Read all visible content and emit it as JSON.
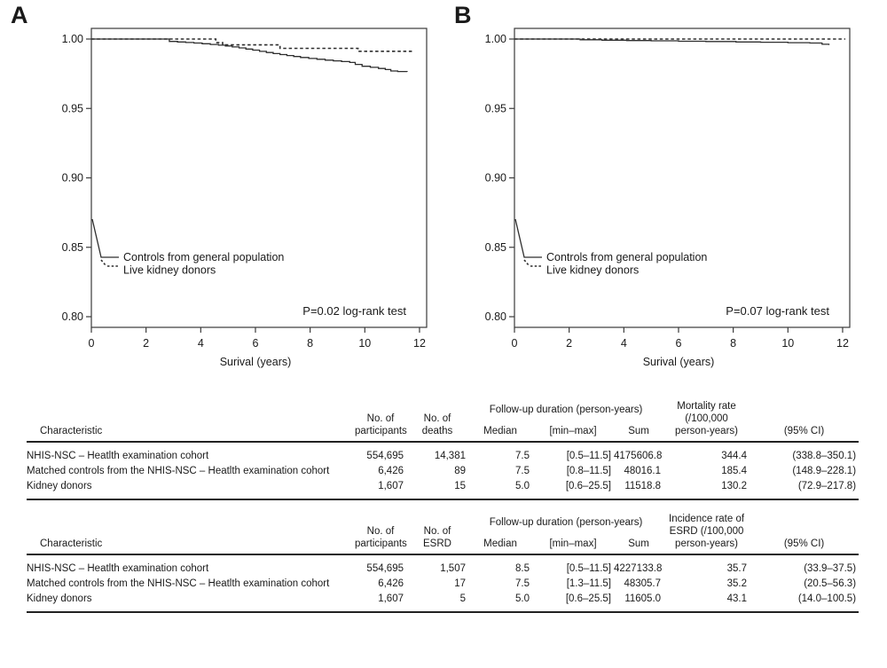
{
  "colors": {
    "line": "#2e2e2e",
    "text": "#1a1a1a",
    "rule": "#222222",
    "frame": "#3a3a3a"
  },
  "chart_data": [
    {
      "type": "line",
      "panel_label": "A",
      "xlabel": "Surival (years)",
      "xlim": [
        0,
        12
      ],
      "ylim": [
        0.8,
        1.0
      ],
      "x_ticks": [
        0,
        2,
        4,
        6,
        8,
        10,
        12
      ],
      "y_tick_labels": [
        "1.00",
        "0.95",
        "0.90",
        "0.85",
        "0.80"
      ],
      "y_tick_values": [
        1.0,
        0.95,
        0.9,
        0.85,
        0.8
      ],
      "grid": false,
      "legend_position": "lower-left",
      "annotation": "P=0.02 log-rank test",
      "series": [
        {
          "name": "Controls from general population",
          "style": "solid",
          "points": [
            [
              0,
              1.0
            ],
            [
              2.85,
              0.9983
            ],
            [
              3.15,
              0.9979
            ],
            [
              3.45,
              0.9975
            ],
            [
              3.75,
              0.9971
            ],
            [
              4.05,
              0.9966
            ],
            [
              4.35,
              0.9961
            ],
            [
              4.65,
              0.9956
            ],
            [
              4.9,
              0.995
            ],
            [
              5.15,
              0.9943
            ],
            [
              5.4,
              0.9936
            ],
            [
              5.65,
              0.9928
            ],
            [
              5.9,
              0.992
            ],
            [
              6.15,
              0.9911
            ],
            [
              6.4,
              0.9903
            ],
            [
              6.65,
              0.9895
            ],
            [
              6.9,
              0.9888
            ],
            [
              7.15,
              0.9881
            ],
            [
              7.4,
              0.9874
            ],
            [
              7.65,
              0.9867
            ],
            [
              7.95,
              0.986
            ],
            [
              8.25,
              0.9854
            ],
            [
              8.55,
              0.9848
            ],
            [
              8.85,
              0.9843
            ],
            [
              9.15,
              0.9838
            ],
            [
              9.45,
              0.9831
            ],
            [
              9.65,
              0.9817
            ],
            [
              9.9,
              0.9804
            ],
            [
              10.2,
              0.9796
            ],
            [
              10.5,
              0.9788
            ],
            [
              10.75,
              0.978
            ],
            [
              10.95,
              0.977
            ],
            [
              11.2,
              0.9766
            ],
            [
              11.55,
              0.9765
            ]
          ]
        },
        {
          "name": "Live kidney donors",
          "style": "dashed",
          "points": [
            [
              0,
              1.0
            ],
            [
              4.55,
              0.9974
            ],
            [
              4.8,
              0.9958
            ],
            [
              6.9,
              0.9933
            ],
            [
              9.75,
              0.9912
            ],
            [
              11.8,
              0.9912
            ]
          ]
        }
      ]
    },
    {
      "type": "line",
      "panel_label": "B",
      "xlabel": "Surival (years)",
      "xlim": [
        0,
        12
      ],
      "ylim": [
        0.8,
        1.0
      ],
      "x_ticks": [
        0,
        2,
        4,
        6,
        8,
        10,
        12
      ],
      "y_tick_labels": [
        "1.00",
        "0.95",
        "0.90",
        "0.85",
        "0.80"
      ],
      "y_tick_values": [
        1.0,
        0.95,
        0.9,
        0.85,
        0.8
      ],
      "grid": false,
      "legend_position": "lower-left",
      "annotation": "P=0.07 log-rank test",
      "series": [
        {
          "name": "Controls from general population",
          "style": "solid",
          "points": [
            [
              0,
              1.0
            ],
            [
              2.4,
              0.9995
            ],
            [
              3.2,
              0.9992
            ],
            [
              4.1,
              0.9989
            ],
            [
              5.0,
              0.9987
            ],
            [
              6.0,
              0.9984
            ],
            [
              7.0,
              0.9982
            ],
            [
              8.1,
              0.9979
            ],
            [
              9.0,
              0.9977
            ],
            [
              10.0,
              0.9974
            ],
            [
              10.8,
              0.9971
            ],
            [
              11.25,
              0.9962
            ],
            [
              11.5,
              0.9957
            ]
          ]
        },
        {
          "name": "Live kidney donors",
          "style": "dashed",
          "points": [
            [
              0,
              1.0
            ],
            [
              12.1,
              1.0
            ]
          ]
        }
      ]
    }
  ],
  "tables": [
    {
      "header": {
        "characteristic": "Characteristic",
        "participants": [
          "No. of",
          "participants"
        ],
        "events": [
          "No. of",
          "deaths"
        ],
        "span_group": "Follow-up duration (person-years)",
        "span_cols": [
          "Median",
          "[min–max]",
          "Sum"
        ],
        "rate": [
          "Mortality rate",
          "(/100,000",
          "person-years)"
        ],
        "ci": "(95% CI)"
      },
      "rows": [
        [
          "NHIS-NSC – Heatlth examination cohort",
          "554,695",
          "14,381",
          "7.5",
          "[0.5–11.5]",
          "4175606.8",
          "344.4",
          "(338.8–350.1)"
        ],
        [
          "Matched controls from the NHIS-NSC – Heatlth examination cohort",
          "6,426",
          "89",
          "7.5",
          "[0.8–11.5]",
          "48016.1",
          "185.4",
          "(148.9–228.1)"
        ],
        [
          "Kidney donors",
          "1,607",
          "15",
          "5.0",
          "[0.6–25.5]",
          "11518.8",
          "130.2",
          "(72.9–217.8)"
        ]
      ]
    },
    {
      "header": {
        "characteristic": "Characteristic",
        "participants": [
          "No. of",
          "participants"
        ],
        "events": [
          "No. of",
          "ESRD"
        ],
        "span_group": "Follow-up duration (person-years)",
        "span_cols": [
          "Median",
          "[min–max]",
          "Sum"
        ],
        "rate": [
          "Incidence rate of",
          "ESRD (/100,000",
          "person-years)"
        ],
        "ci": "(95% CI)"
      },
      "rows": [
        [
          "NHIS-NSC – Heatlth examination cohort",
          "554,695",
          "1,507",
          "8.5",
          "[0.5–11.5]",
          "4227133.8",
          "35.7",
          "(33.9–37.5)"
        ],
        [
          "Matched controls from the NHIS-NSC – Heatlth examination cohort",
          "6,426",
          "17",
          "7.5",
          "[1.3–11.5]",
          "48305.7",
          "35.2",
          "(20.5–56.3)"
        ],
        [
          "Kidney donors",
          "1,607",
          "5",
          "5.0",
          "[0.6–25.5]",
          "11605.0",
          "43.1",
          "(14.0–100.5)"
        ]
      ]
    }
  ]
}
